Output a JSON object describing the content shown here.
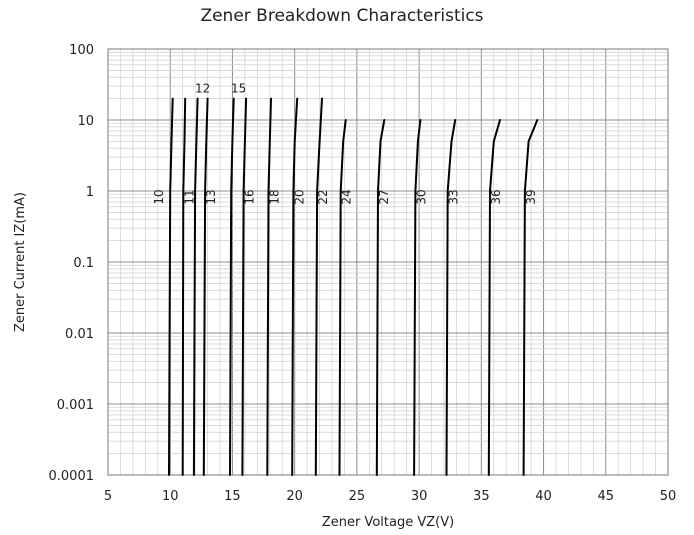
{
  "chart_data": {
    "type": "line",
    "title": "Zener Breakdown Characteristics",
    "xlabel": "Zener Voltage    VZ(V)",
    "ylabel": "Zener Current   IZ(mA)",
    "xlim": [
      5,
      50
    ],
    "ylim": [
      0.0001,
      100
    ],
    "yscale": "log",
    "grid": true,
    "x_ticks": [
      "5",
      "10",
      "15",
      "20",
      "25",
      "30",
      "35",
      "40",
      "45",
      "50"
    ],
    "y_ticks": [
      "0.0001",
      "0.001",
      "0.01",
      "0.1",
      "1",
      "10",
      "100"
    ],
    "series": [
      {
        "name": "10",
        "x": [
          9.9,
          10.0,
          10.1,
          10.2
        ],
        "y": [
          0.0001,
          1,
          5,
          20
        ],
        "label_y": 1,
        "label_side": "left"
      },
      {
        "name": "11",
        "x": [
          11.0,
          11.05,
          11.15,
          11.2
        ],
        "y": [
          0.0001,
          1,
          5,
          20
        ],
        "label_y": 1,
        "label_side": "right"
      },
      {
        "name": "12",
        "x": [
          11.9,
          12.0,
          12.1,
          12.2
        ],
        "y": [
          0.0001,
          1,
          5,
          20
        ],
        "label_y": 28,
        "label_side": "top"
      },
      {
        "name": "13",
        "x": [
          12.7,
          12.8,
          12.9,
          13.0
        ],
        "y": [
          0.0001,
          1,
          5,
          20
        ],
        "label_y": 1,
        "label_side": "right"
      },
      {
        "name": "15",
        "x": [
          14.8,
          14.9,
          15.0,
          15.1
        ],
        "y": [
          0.0001,
          1,
          5,
          20
        ],
        "label_y": 28,
        "label_side": "top"
      },
      {
        "name": "16",
        "x": [
          15.8,
          15.9,
          16.0,
          16.1
        ],
        "y": [
          0.0001,
          1,
          5,
          20
        ],
        "label_y": 1,
        "label_side": "right"
      },
      {
        "name": "18",
        "x": [
          17.8,
          17.9,
          18.0,
          18.1
        ],
        "y": [
          0.0001,
          1,
          5,
          20
        ],
        "label_y": 1,
        "label_side": "right"
      },
      {
        "name": "20",
        "x": [
          19.8,
          19.9,
          20.0,
          20.2
        ],
        "y": [
          0.0001,
          1,
          5,
          20
        ],
        "label_y": 1,
        "label_side": "right"
      },
      {
        "name": "22",
        "x": [
          21.7,
          21.8,
          22.0,
          22.2
        ],
        "y": [
          0.0001,
          1,
          5,
          20
        ],
        "label_y": 1,
        "label_side": "right"
      },
      {
        "name": "24",
        "x": [
          23.6,
          23.7,
          23.9,
          24.1
        ],
        "y": [
          0.0001,
          1,
          5,
          10
        ],
        "label_y": 1,
        "label_side": "right"
      },
      {
        "name": "27",
        "x": [
          26.6,
          26.7,
          26.9,
          27.2
        ],
        "y": [
          0.0001,
          1,
          5,
          10
        ],
        "label_y": 1,
        "label_side": "right"
      },
      {
        "name": "30",
        "x": [
          29.6,
          29.7,
          29.9,
          30.1
        ],
        "y": [
          0.0001,
          1,
          5,
          10
        ],
        "label_y": 1,
        "label_side": "right"
      },
      {
        "name": "33",
        "x": [
          32.2,
          32.3,
          32.6,
          32.9
        ],
        "y": [
          0.0001,
          1,
          5,
          10
        ],
        "label_y": 1,
        "label_side": "right"
      },
      {
        "name": "36",
        "x": [
          35.6,
          35.7,
          36.0,
          36.5
        ],
        "y": [
          0.0001,
          1,
          5,
          10
        ],
        "label_y": 1,
        "label_side": "right"
      },
      {
        "name": "39",
        "x": [
          38.4,
          38.5,
          38.8,
          39.5
        ],
        "y": [
          0.0001,
          1,
          5,
          10
        ],
        "label_y": 1,
        "label_side": "right"
      }
    ]
  }
}
